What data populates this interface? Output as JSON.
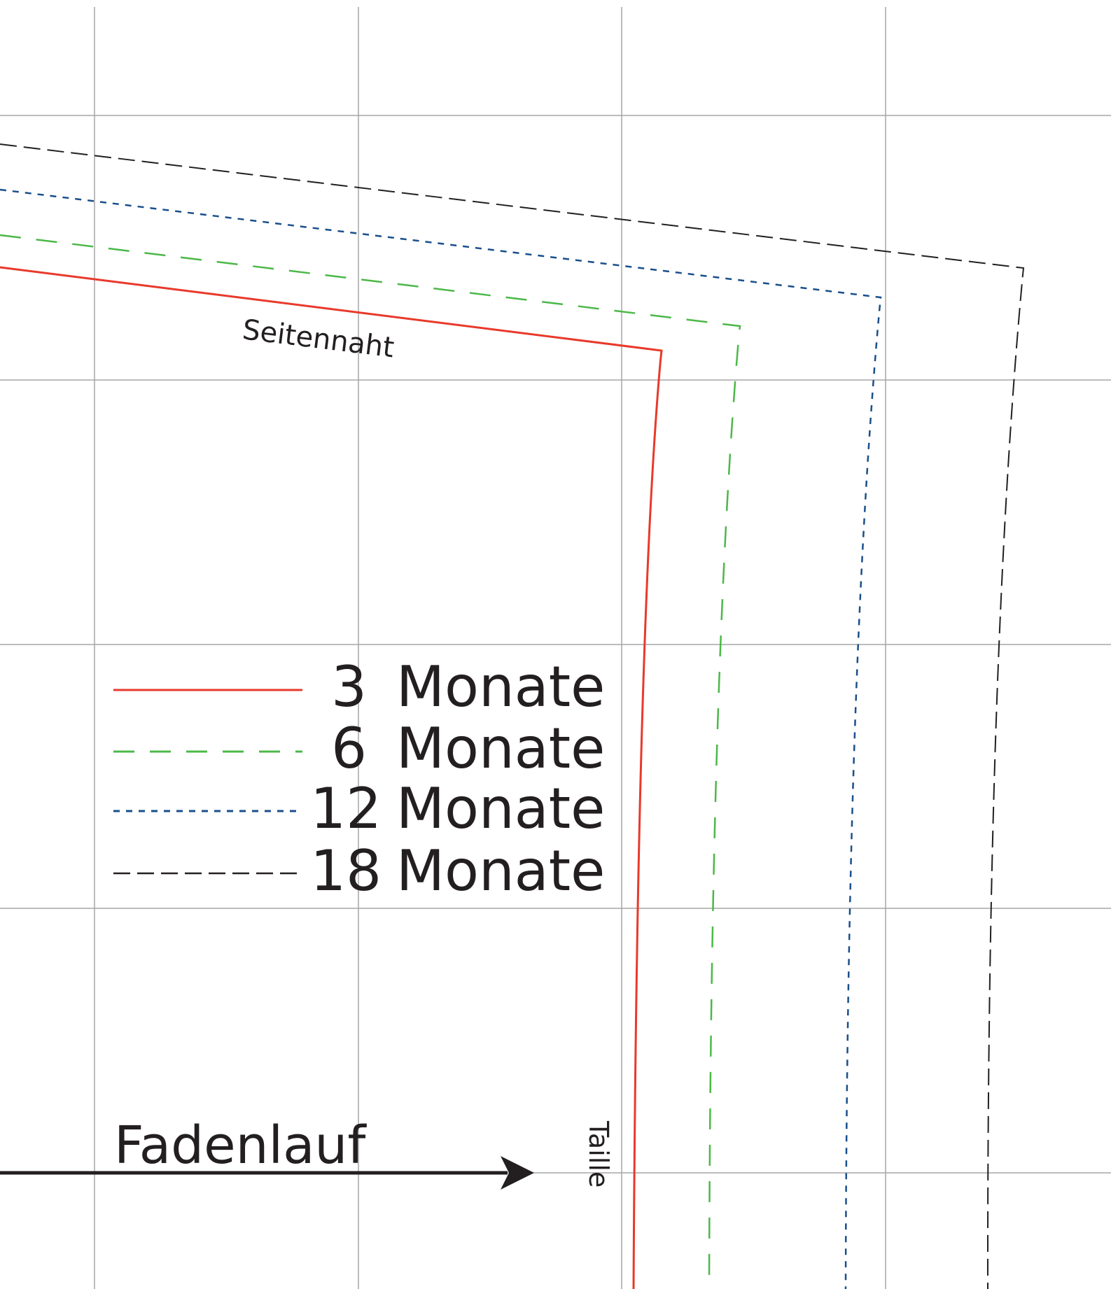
{
  "labels": {
    "side_seam": "Seitennaht",
    "waist": "Taille",
    "grainline": "Fadenlauf"
  },
  "legend": [
    {
      "size_number": "3",
      "unit": "Monate",
      "style": "solid",
      "color": "#e8392b"
    },
    {
      "size_number": "6",
      "unit": "Monate",
      "style": "long-dash",
      "color": "#4cb848"
    },
    {
      "size_number": "12",
      "unit": "Monate",
      "style": "short-dash",
      "color": "#1a4f8b"
    },
    {
      "size_number": "18",
      "unit": "Monate",
      "style": "dash",
      "color": "#231f20"
    }
  ],
  "colors": {
    "grid": "#a6a6a6",
    "text": "#231f20",
    "arrow": "#231f20"
  }
}
